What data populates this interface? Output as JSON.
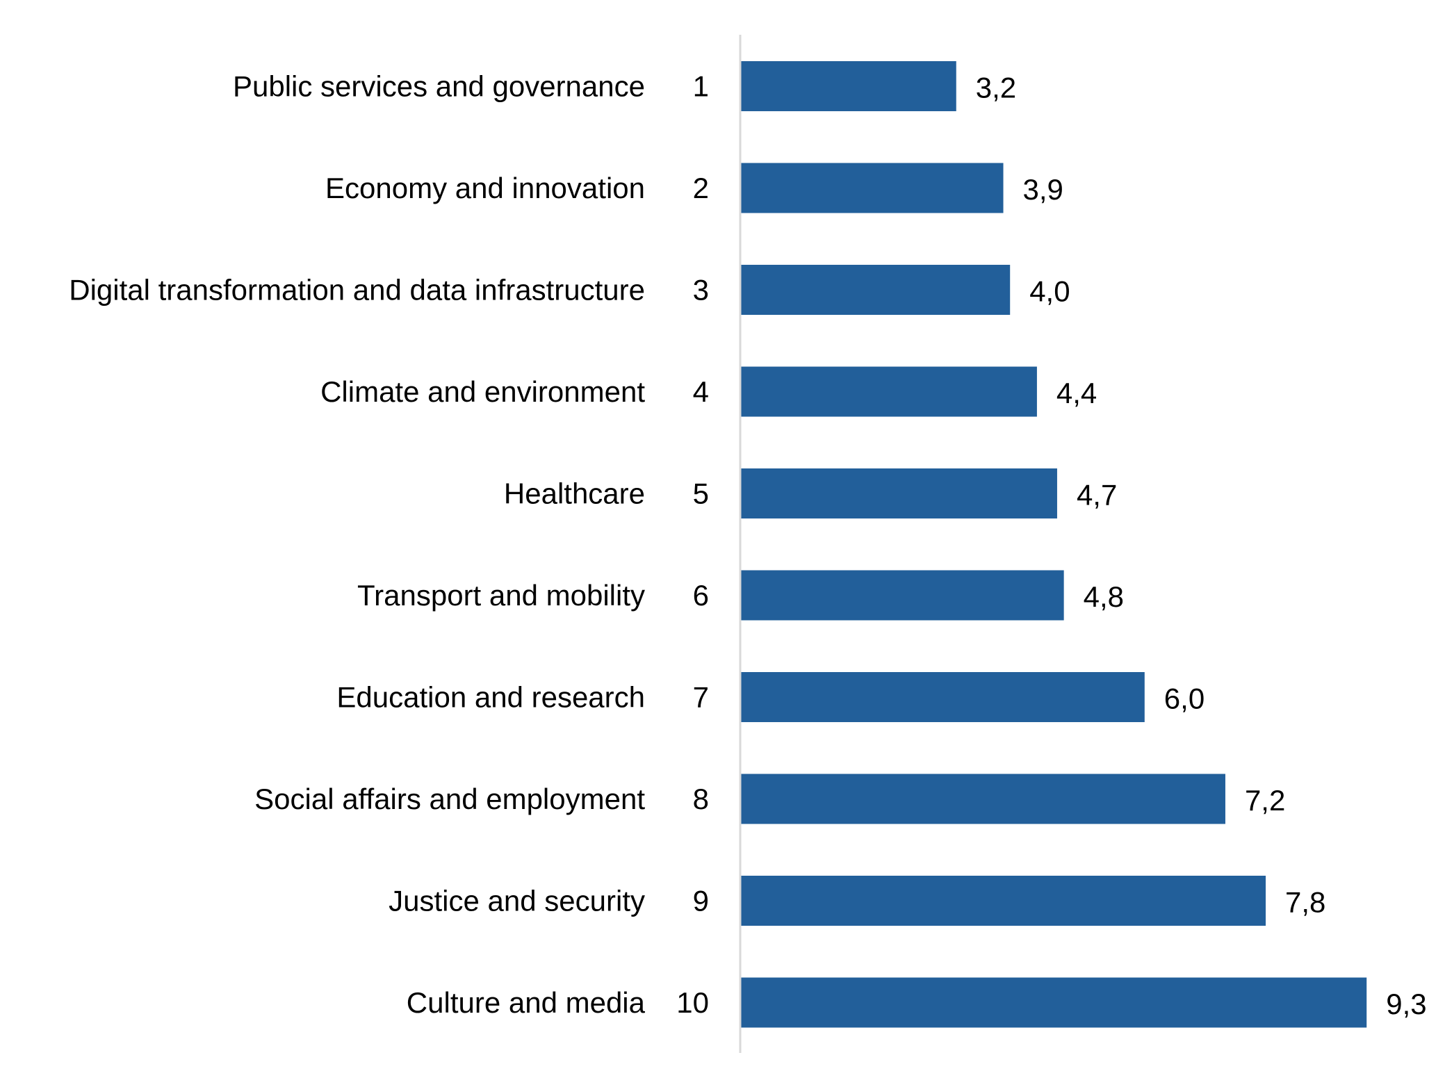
{
  "chart_data": {
    "type": "bar",
    "orientation": "horizontal",
    "title": "",
    "xlabel": "",
    "ylabel": "",
    "ranks": [
      "1",
      "2",
      "3",
      "4",
      "5",
      "6",
      "7",
      "8",
      "9",
      "10"
    ],
    "categories": [
      "Public services and governance",
      "Economy and innovation",
      "Digital transformation and data infrastructure",
      "Climate and environment",
      "Healthcare",
      "Transport and mobility",
      "Education and research",
      "Social affairs and employment",
      "Justice and security",
      "Culture and media"
    ],
    "values": [
      3.2,
      3.9,
      4.0,
      4.4,
      4.7,
      4.8,
      6.0,
      7.2,
      7.8,
      9.3
    ],
    "value_labels": [
      "3,2",
      "3,9",
      "4,0",
      "4,4",
      "4,7",
      "4,8",
      "6,0",
      "7,2",
      "7,8",
      "9,3"
    ],
    "xlim": [
      0,
      10
    ],
    "grid": false,
    "legend": "none",
    "bar_color": "#225F9A",
    "axis_color": "#D9D9D9"
  }
}
